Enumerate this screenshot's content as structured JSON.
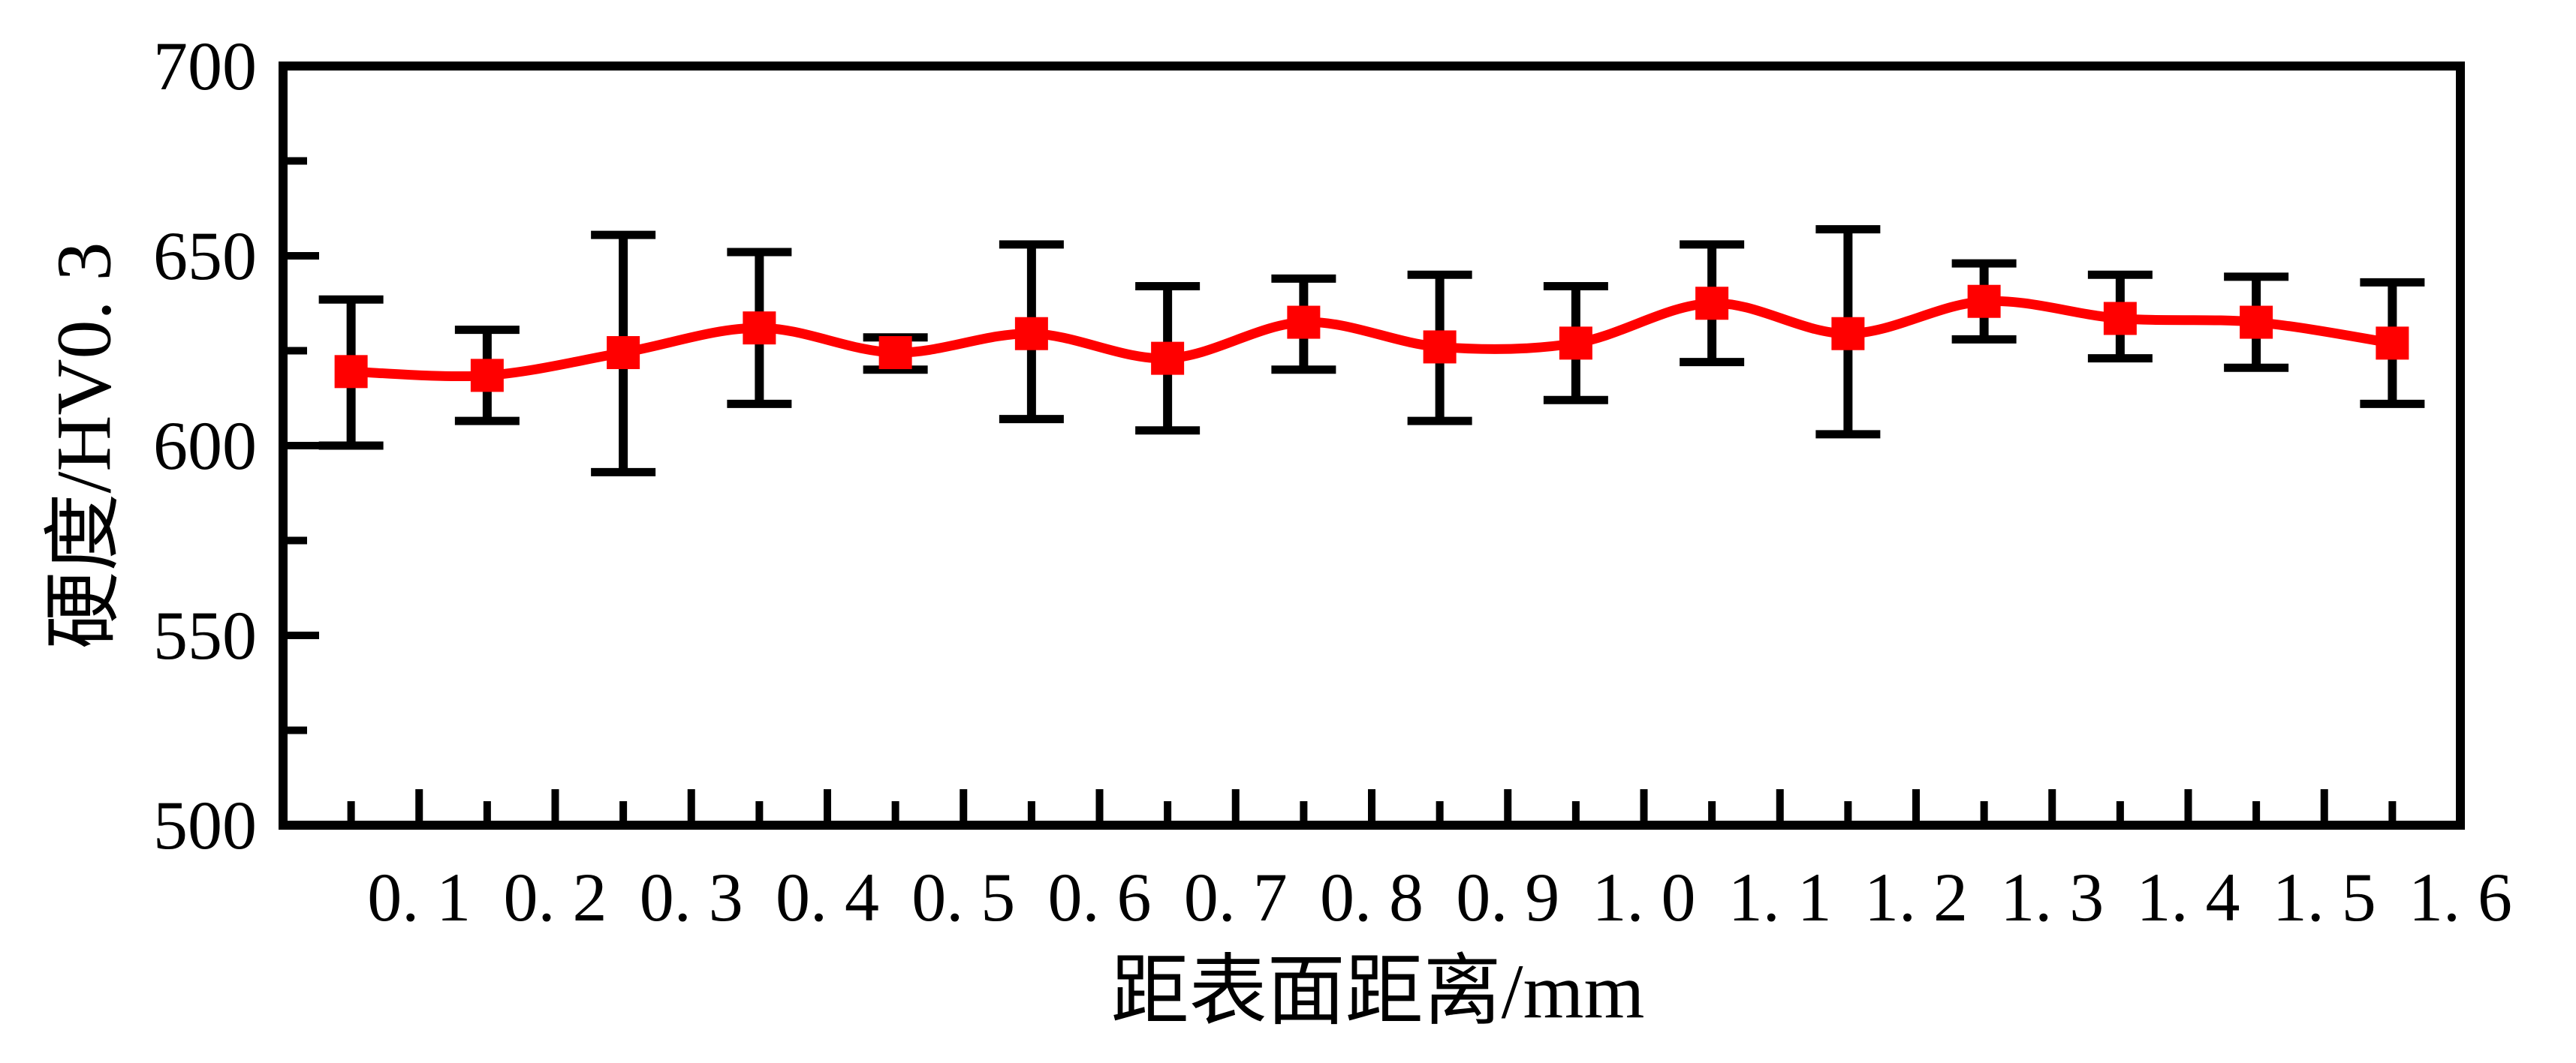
{
  "page": {
    "background": "#FFFFFF"
  },
  "chart_data": {
    "type": "line",
    "title": "",
    "xlabel": "距表面距离/mm",
    "ylabel": "硬度/HV0. 3",
    "xlim": [
      0,
      1.6
    ],
    "ylim": [
      500,
      700
    ],
    "grid": false,
    "legend_position": "none",
    "axis_color": "#000000",
    "background_color": "#FFFFFF",
    "x_major_ticks": [
      0.1,
      0.2,
      0.3,
      0.4,
      0.5,
      0.6,
      0.7,
      0.8,
      0.9,
      1.0,
      1.1,
      1.2,
      1.3,
      1.4,
      1.5,
      1.6
    ],
    "x_tick_labels": [
      "0. 1",
      "0. 2",
      "0. 3",
      "0. 4",
      "0. 5",
      "0. 6",
      "0. 7",
      "0. 8",
      "0. 9",
      "1. 0",
      "1. 1",
      "1. 2",
      "1. 3",
      "1. 4",
      "1. 5",
      "1. 6"
    ],
    "x_minor_ticks": [
      0.05,
      0.15,
      0.25,
      0.35,
      0.45,
      0.55,
      0.65,
      0.75,
      0.85,
      0.95,
      1.05,
      1.15,
      1.25,
      1.35,
      1.45,
      1.55
    ],
    "y_major_ticks": [
      500,
      550,
      600,
      650,
      700
    ],
    "y_tick_labels": [
      "500",
      "550",
      "600",
      "650",
      "700"
    ],
    "y_minor_ticks": [
      525,
      575,
      625,
      675
    ],
    "series": [
      {
        "name": "硬度",
        "color": "#FF0000",
        "marker": "filled-square",
        "line_style": "smooth",
        "error_bar_color": "#000000",
        "x": [
          0.05,
          0.15,
          0.25,
          0.35,
          0.45,
          0.55,
          0.65,
          0.75,
          0.85,
          0.95,
          1.05,
          1.15,
          1.25,
          1.35,
          1.45,
          1.55
        ],
        "y": [
          619.5,
          618.5,
          624.5,
          631,
          624.5,
          629.5,
          623,
          632.5,
          626,
          627,
          637.5,
          629.5,
          638,
          633.5,
          632.5,
          627
        ],
        "y_err_upper": [
          638.5,
          630.5,
          655.5,
          651,
          628.5,
          653,
          642,
          644,
          645,
          642,
          653,
          657,
          648,
          645,
          644.5,
          643
        ],
        "y_err_lower": [
          600,
          606.5,
          593,
          611,
          620,
          607,
          604,
          620,
          606.5,
          612,
          622,
          603,
          628,
          623,
          620.5,
          611
        ]
      }
    ]
  }
}
